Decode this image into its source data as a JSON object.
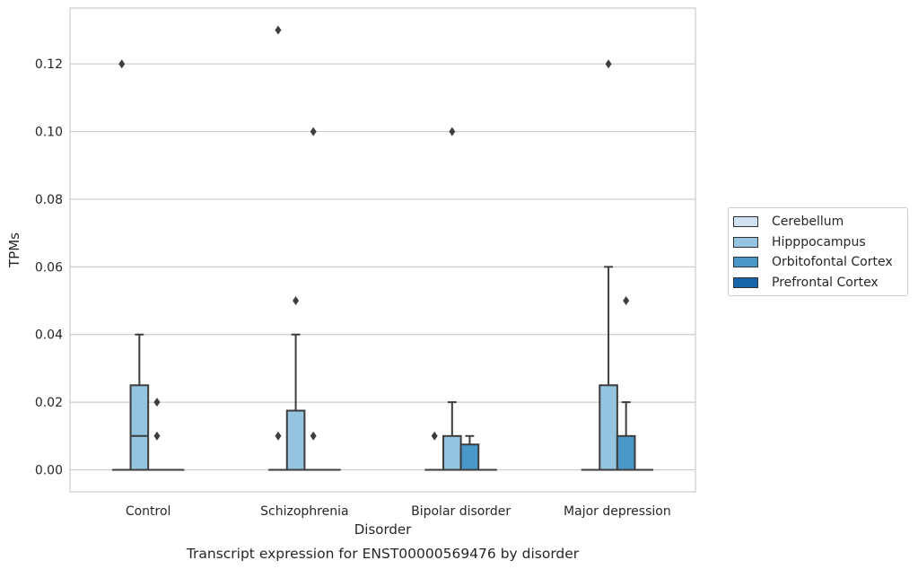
{
  "chart_data": {
    "type": "box",
    "title": "Transcript expression for ENST00000569476 by disorder",
    "xlabel": "Disorder",
    "ylabel": "TPMs",
    "ylim": [
      -0.0065,
      0.1365
    ],
    "yticks": [
      0.0,
      0.02,
      0.04,
      0.06,
      0.08,
      0.1,
      0.12
    ],
    "ytick_labels": [
      "0.00",
      "0.02",
      "0.04",
      "0.06",
      "0.08",
      "0.10",
      "0.12"
    ],
    "grid": true,
    "legend_position": "right",
    "categories": [
      "Control",
      "Schizophrenia",
      "Bipolar disorder",
      "Major depression"
    ],
    "series": [
      {
        "name": "Cerebellum",
        "color": "#d0e1f2",
        "boxes": [
          {
            "q1": 0,
            "median": 0,
            "q3": 0,
            "whisker_low": 0,
            "whisker_high": 0,
            "outliers": [
              0.12
            ]
          },
          {
            "q1": 0,
            "median": 0,
            "q3": 0,
            "whisker_low": 0,
            "whisker_high": 0,
            "outliers": [
              0.13,
              0.01
            ]
          },
          {
            "q1": 0,
            "median": 0,
            "q3": 0,
            "whisker_low": 0,
            "whisker_high": 0,
            "outliers": [
              0.01
            ]
          },
          {
            "q1": 0,
            "median": 0,
            "q3": 0,
            "whisker_low": 0,
            "whisker_high": 0,
            "outliers": []
          }
        ]
      },
      {
        "name": "Hipppocampus",
        "color": "#94c4df",
        "boxes": [
          {
            "q1": 0,
            "median": 0.01,
            "q3": 0.025,
            "whisker_low": 0,
            "whisker_high": 0.04,
            "outliers": []
          },
          {
            "q1": 0,
            "median": 0,
            "q3": 0.0175,
            "whisker_low": 0,
            "whisker_high": 0.04,
            "outliers": [
              0.05
            ]
          },
          {
            "q1": 0,
            "median": 0,
            "q3": 0.01,
            "whisker_low": 0,
            "whisker_high": 0.02,
            "outliers": [
              0.1
            ]
          },
          {
            "q1": 0,
            "median": 0,
            "q3": 0.025,
            "whisker_low": 0,
            "whisker_high": 0.06,
            "outliers": [
              0.12
            ]
          }
        ]
      },
      {
        "name": "Orbitofontal Cortex",
        "color": "#4a98c9",
        "boxes": [
          {
            "q1": 0,
            "median": 0,
            "q3": 0,
            "whisker_low": 0,
            "whisker_high": 0,
            "outliers": [
              0.02,
              0.01
            ]
          },
          {
            "q1": 0,
            "median": 0,
            "q3": 0,
            "whisker_low": 0,
            "whisker_high": 0,
            "outliers": [
              0.1,
              0.01
            ]
          },
          {
            "q1": 0,
            "median": 0,
            "q3": 0.0075,
            "whisker_low": 0,
            "whisker_high": 0.01,
            "outliers": []
          },
          {
            "q1": 0,
            "median": 0,
            "q3": 0.01,
            "whisker_low": 0,
            "whisker_high": 0.02,
            "outliers": [
              0.05
            ]
          }
        ]
      },
      {
        "name": "Prefrontal Cortex",
        "color": "#1764ab",
        "boxes": [
          {
            "q1": 0,
            "median": 0,
            "q3": 0,
            "whisker_low": 0,
            "whisker_high": 0,
            "outliers": []
          },
          {
            "q1": 0,
            "median": 0,
            "q3": 0,
            "whisker_low": 0,
            "whisker_high": 0,
            "outliers": []
          },
          {
            "q1": 0,
            "median": 0,
            "q3": 0,
            "whisker_low": 0,
            "whisker_high": 0,
            "outliers": []
          },
          {
            "q1": 0,
            "median": 0,
            "q3": 0,
            "whisker_low": 0,
            "whisker_high": 0,
            "outliers": []
          }
        ]
      }
    ]
  }
}
